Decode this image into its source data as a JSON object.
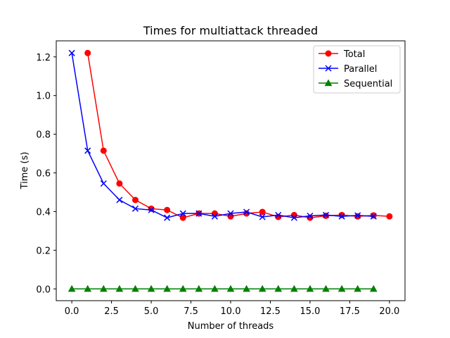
{
  "chart_data": {
    "type": "line",
    "title": "Times for multiattack threaded",
    "xlabel": "Number of threads",
    "ylabel": "Time (s)",
    "xlim": [
      -0.98,
      20.98
    ],
    "ylim": [
      -0.061,
      1.283
    ],
    "xticks": [
      0.0,
      2.5,
      5.0,
      7.5,
      10.0,
      12.5,
      15.0,
      17.5,
      20.0
    ],
    "xtick_labels": [
      "0.0",
      "2.5",
      "5.0",
      "7.5",
      "10.0",
      "12.5",
      "15.0",
      "17.5",
      "20.0"
    ],
    "yticks": [
      0.0,
      0.2,
      0.4,
      0.6,
      0.8,
      1.0,
      1.2
    ],
    "ytick_labels": [
      "0.0",
      "0.2",
      "0.4",
      "0.6",
      "0.8",
      "1.0",
      "1.2"
    ],
    "legend_position": "top-right",
    "series": [
      {
        "name": "Total",
        "color": "#ff0000",
        "marker": "circle",
        "x": [
          1,
          2,
          3,
          4,
          5,
          6,
          7,
          8,
          9,
          10,
          11,
          12,
          13,
          14,
          15,
          16,
          17,
          18,
          19,
          20
        ],
        "values": [
          1.22,
          0.715,
          0.545,
          0.46,
          0.415,
          0.408,
          0.368,
          0.39,
          0.39,
          0.375,
          0.39,
          0.398,
          0.372,
          0.382,
          0.368,
          0.378,
          0.382,
          0.375,
          0.38,
          0.375
        ]
      },
      {
        "name": "Parallel",
        "color": "#0000ff",
        "marker": "x",
        "x": [
          0,
          1,
          2,
          3,
          4,
          5,
          6,
          7,
          8,
          9,
          10,
          11,
          12,
          13,
          14,
          15,
          16,
          17,
          18,
          19
        ],
        "values": [
          1.22,
          0.715,
          0.545,
          0.46,
          0.415,
          0.408,
          0.368,
          0.39,
          0.39,
          0.375,
          0.39,
          0.398,
          0.372,
          0.382,
          0.368,
          0.378,
          0.382,
          0.375,
          0.38,
          0.375
        ]
      },
      {
        "name": "Sequential",
        "color": "#008000",
        "marker": "triangle",
        "x": [
          0,
          1,
          2,
          3,
          4,
          5,
          6,
          7,
          8,
          9,
          10,
          11,
          12,
          13,
          14,
          15,
          16,
          17,
          18,
          19
        ],
        "values": [
          0.0,
          0.0,
          0.0,
          0.0,
          0.0,
          0.0,
          0.0,
          0.0,
          0.0,
          0.0,
          0.0,
          0.0,
          0.0,
          0.0,
          0.0,
          0.0,
          0.0,
          0.0,
          0.0,
          0.0
        ]
      }
    ]
  }
}
